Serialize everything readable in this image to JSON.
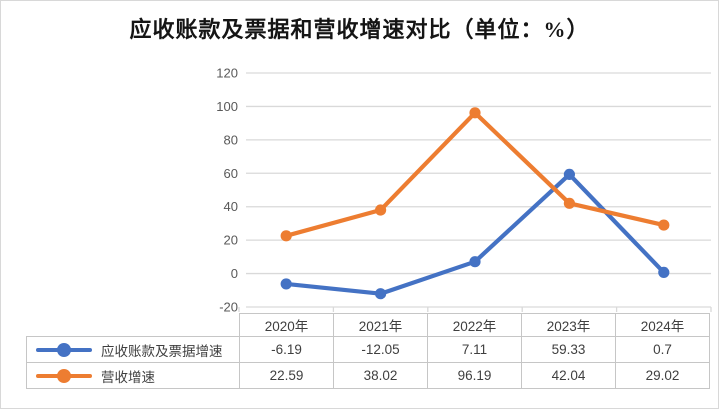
{
  "title": "应收账款及票据和营收增速对比（单位：%）",
  "chart_data": {
    "type": "line",
    "title": "应收账款及票据和营收增速对比（单位：%）",
    "categories": [
      "2020年",
      "2021年",
      "2022年",
      "2023年",
      "2024年"
    ],
    "series": [
      {
        "name": "应收账款及票据增速",
        "values": [
          -6.19,
          -12.05,
          7.11,
          59.33,
          0.7
        ],
        "color": "#4472C4"
      },
      {
        "name": "营收增速",
        "values": [
          22.59,
          38.02,
          96.19,
          42.04,
          29.02
        ],
        "color": "#ED7D31"
      }
    ],
    "ylim": [
      -20,
      120
    ],
    "yticks": [
      120,
      100,
      80,
      60,
      40,
      20,
      0,
      -20
    ],
    "grid": true,
    "legend_position": "data-table-left",
    "marker": "circle"
  },
  "table": {
    "years": [
      "2020年",
      "2021年",
      "2022年",
      "2023年",
      "2024年"
    ],
    "rows": [
      {
        "label": "应收账款及票据增速",
        "values": [
          "-6.19",
          "-12.05",
          "7.11",
          "59.33",
          "0.7"
        ]
      },
      {
        "label": "营收增速",
        "values": [
          "22.59",
          "38.02",
          "96.19",
          "42.04",
          "29.02"
        ]
      }
    ]
  },
  "colors": {
    "series_blue": "#4472C4",
    "series_orange": "#ED7D31",
    "gridline": "#d9d9d9",
    "axis_text": "#595959",
    "table_border": "#c6c6c6",
    "table_text": "#3f3f3f"
  }
}
